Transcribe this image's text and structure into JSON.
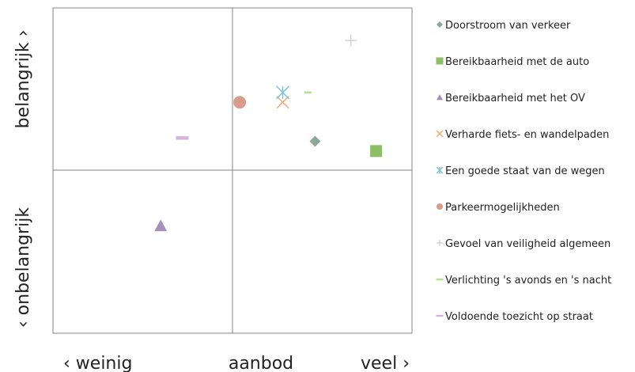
{
  "chart_data": {
    "type": "scatter",
    "xlabel": "aanbod",
    "xlabel_left": "‹ weinig",
    "xlabel_right": "veel ›",
    "ylabel_top": "belangrijk ›",
    "ylabel_bottom": "‹ onbelangrijk",
    "xlim": [
      0,
      10
    ],
    "ylim": [
      0,
      10
    ],
    "grid": false,
    "legend_position": "right",
    "series": [
      {
        "name": "Doorstroom van verkeer",
        "marker": "diamond",
        "color": "#8ea79b",
        "x": 7.3,
        "y": 5.9
      },
      {
        "name": "Bereikbaarheid met de auto",
        "marker": "square",
        "color": "#8cc063",
        "x": 9.0,
        "y": 5.6
      },
      {
        "name": "Bereikbaarheid met het OV",
        "marker": "triangle",
        "color": "#a690bb",
        "x": 3.0,
        "y": 3.3
      },
      {
        "name": "Verharde fiets- en wandelpaden",
        "marker": "x",
        "color": "#efa96b",
        "x": 6.4,
        "y": 7.1
      },
      {
        "name": "Een goede staat van de wegen",
        "marker": "star",
        "color": "#7bbfd8",
        "x": 6.4,
        "y": 7.4
      },
      {
        "name": "Parkeermogelijkheden",
        "marker": "circle",
        "color": "#d79c8a",
        "x": 5.2,
        "y": 7.1
      },
      {
        "name": "Gevoel van veiligheid algemeen",
        "marker": "plus",
        "color": "#c5c7cb",
        "x": 8.3,
        "y": 9.0
      },
      {
        "name": "Verlichting 's avonds en 's nacht",
        "marker": "dash",
        "color": "#b7de8c",
        "x": 7.1,
        "y": 7.4
      },
      {
        "name": "Voldoende toezicht op straat",
        "marker": "dash",
        "color": "#d6b4e0",
        "x": 3.6,
        "y": 6.0
      }
    ]
  }
}
